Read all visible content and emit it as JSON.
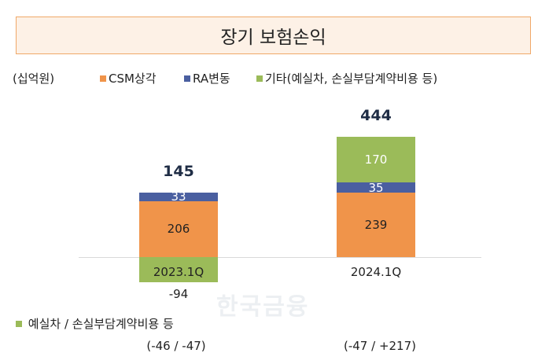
{
  "title": "장기 보험손익",
  "unit": "(십억원)",
  "watermark": "한국금융",
  "colors": {
    "csm": "#f0944a",
    "ra": "#4a5fa0",
    "other": "#9bbb59"
  },
  "legend": [
    "CSM상각",
    "RA변동",
    "기타(예실차, 손실부담계약비용 등)"
  ],
  "note": {
    "label": "예실차 / 손실부담계약비용 등",
    "values": [
      "(-46 / -47)",
      "(-47 / +217)"
    ]
  },
  "chart_data": {
    "type": "bar",
    "stacked": true,
    "categories": [
      "2023.1Q",
      "2024.1Q"
    ],
    "series": [
      {
        "name": "CSM상각",
        "values": [
          206,
          239
        ]
      },
      {
        "name": "RA변동",
        "values": [
          33,
          35
        ]
      },
      {
        "name": "기타(예실차, 손실부담계약비용 등)",
        "values": [
          -94,
          170
        ]
      }
    ],
    "totals": [
      "145",
      "444"
    ],
    "labels": [
      [
        "206",
        "239"
      ],
      [
        "33",
        "35"
      ],
      [
        "-94",
        "170"
      ]
    ]
  }
}
